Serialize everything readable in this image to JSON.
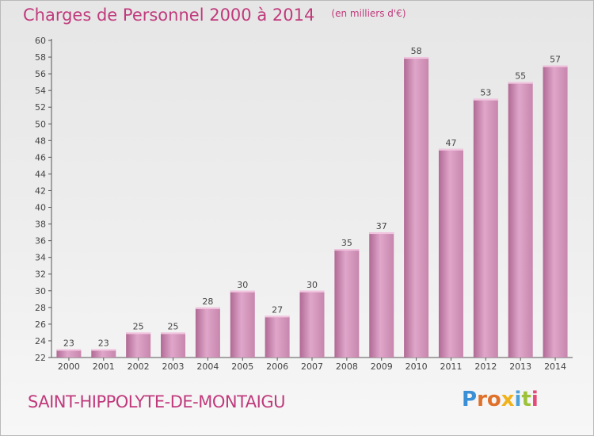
{
  "header": {
    "title": "Charges de Personnel 2000 à 2014",
    "subtitle": "(en milliers d'€)"
  },
  "footer": {
    "commune": "SAINT-HIPPOLYTE-DE-MONTAIGU",
    "logo_text": "Proxiti",
    "logo_colors": [
      "#3a8fd6",
      "#e0712a",
      "#e0712a",
      "#f0b21c",
      "#4aa0d8",
      "#9dc23a",
      "#e34b7a"
    ]
  },
  "colors": {
    "accent": "#c03a7c",
    "bar_gradient": [
      "#b06a94",
      "#e0a6ca",
      "#c786ad"
    ],
    "bar_top": "#f2c6e0"
  },
  "chart_data": {
    "type": "bar",
    "categories": [
      "2000",
      "2001",
      "2002",
      "2003",
      "2004",
      "2005",
      "2006",
      "2007",
      "2008",
      "2009",
      "2010",
      "2011",
      "2012",
      "2013",
      "2014"
    ],
    "values": [
      23,
      23,
      25,
      25,
      28,
      30,
      27,
      30,
      35,
      37,
      58,
      47,
      53,
      55,
      57
    ],
    "title": "Charges de Personnel 2000 à 2014",
    "subtitle": "(en milliers d'€)",
    "ylim": [
      22,
      60
    ],
    "yticks": [
      22,
      24,
      26,
      28,
      30,
      32,
      34,
      36,
      38,
      40,
      42,
      44,
      46,
      48,
      50,
      52,
      54,
      56,
      58,
      60
    ],
    "grid": false,
    "data_labels": true
  }
}
